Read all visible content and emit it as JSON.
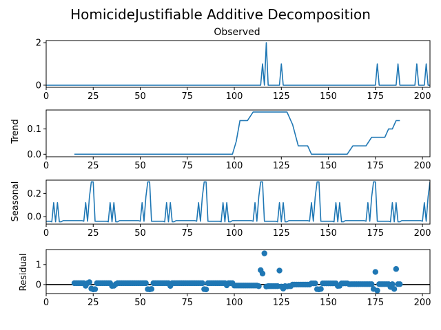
{
  "chart_data": {
    "type": "line",
    "title": "HomicideJustifiable Additive Decomposition",
    "xlim": [
      0,
      204
    ],
    "xticks": [
      0,
      25,
      50,
      75,
      100,
      125,
      150,
      175,
      200
    ],
    "panels": [
      {
        "key": "observed",
        "kind": "line",
        "title": "Observed",
        "ylabel": "",
        "ylim": [
          -0.1,
          2.1
        ],
        "yticks": [
          0,
          2
        ],
        "ytick_labels": [
          "0",
          "2"
        ],
        "x": [
          0,
          114,
          115,
          116,
          117,
          118,
          124,
          125,
          126,
          175,
          176,
          177,
          186,
          187,
          188,
          196,
          197,
          198,
          201,
          202,
          203,
          204
        ],
        "values": [
          0,
          0,
          1,
          0,
          2,
          0,
          0,
          1,
          0,
          0,
          1,
          0,
          0,
          1,
          0,
          0,
          1,
          0,
          0,
          1,
          0,
          0
        ]
      },
      {
        "key": "trend",
        "kind": "line",
        "title": "",
        "ylabel": "Trend",
        "ylim": [
          -0.01,
          0.175
        ],
        "yticks": [
          0,
          0.1
        ],
        "ytick_labels": [
          "0.0",
          "0.1"
        ],
        "x": [
          15,
          99,
          101,
          103,
          107,
          110,
          128,
          131,
          134,
          139,
          141,
          160,
          163,
          170,
          173,
          180,
          182,
          184,
          186,
          188
        ],
        "values": [
          0,
          0,
          0.05,
          0.133,
          0.133,
          0.167,
          0.167,
          0.117,
          0.033,
          0.033,
          0,
          0,
          0.033,
          0.033,
          0.067,
          0.067,
          0.1,
          0.1,
          0.133,
          0.133
        ]
      },
      {
        "key": "seasonal",
        "kind": "line",
        "title": "",
        "ylabel": "Seasonal",
        "ylim": [
          -0.065,
          0.315
        ],
        "yticks": [
          0,
          0.2
        ],
        "ytick_labels": [
          "0.0",
          "0.2"
        ],
        "period": 30,
        "pattern_x": [
          0,
          2,
          3,
          4,
          5,
          6,
          7,
          8,
          9,
          12,
          15,
          19,
          20,
          21,
          22,
          23,
          24,
          25,
          26,
          27,
          29,
          30
        ],
        "pattern_values": [
          -0.04,
          -0.04,
          -0.045,
          0.12,
          -0.045,
          0.12,
          -0.045,
          -0.045,
          -0.035,
          -0.035,
          -0.035,
          -0.035,
          -0.04,
          0.12,
          -0.04,
          0.17,
          0.3,
          0.3,
          -0.04,
          -0.04,
          -0.04,
          -0.04
        ],
        "x_start": 0,
        "x_end": 204
      },
      {
        "key": "residual",
        "kind": "scatter",
        "title": "",
        "ylabel": "Residual",
        "ylim": [
          -0.45,
          1.75
        ],
        "yticks": [
          0,
          1
        ],
        "ytick_labels": [
          "0",
          "1"
        ],
        "zero_line": true,
        "x_start": 15,
        "x_end": 188,
        "baseline_segments": [
          {
            "from": 15,
            "to": 99,
            "value": 0.07
          },
          {
            "from": 100,
            "to": 112,
            "value": -0.05
          },
          {
            "from": 113,
            "to": 130,
            "value": -0.08
          },
          {
            "from": 131,
            "to": 140,
            "value": 0.0
          },
          {
            "from": 141,
            "to": 160,
            "value": 0.06
          },
          {
            "from": 161,
            "to": 188,
            "value": 0.02
          }
        ],
        "overrides": [
          {
            "x": 21,
            "value": -0.06
          },
          {
            "x": 23,
            "value": 0.12
          },
          {
            "x": 24,
            "value": -0.2
          },
          {
            "x": 25,
            "value": -0.24
          },
          {
            "x": 26,
            "value": -0.23
          },
          {
            "x": 35,
            "value": -0.07
          },
          {
            "x": 36,
            "value": -0.06
          },
          {
            "x": 37,
            "value": 0.02
          },
          {
            "x": 54,
            "value": -0.23
          },
          {
            "x": 55,
            "value": -0.24
          },
          {
            "x": 56,
            "value": -0.22
          },
          {
            "x": 66,
            "value": -0.07
          },
          {
            "x": 84,
            "value": -0.23
          },
          {
            "x": 85,
            "value": -0.24
          },
          {
            "x": 96,
            "value": -0.04
          },
          {
            "x": 114,
            "value": 0.72
          },
          {
            "x": 115,
            "value": 0.55
          },
          {
            "x": 116,
            "value": 1.56
          },
          {
            "x": 117,
            "value": -0.1
          },
          {
            "x": 124,
            "value": 0.7
          },
          {
            "x": 125,
            "value": -0.1
          },
          {
            "x": 126,
            "value": -0.2
          },
          {
            "x": 128,
            "value": -0.1
          },
          {
            "x": 144,
            "value": -0.23
          },
          {
            "x": 145,
            "value": -0.24
          },
          {
            "x": 146,
            "value": -0.22
          },
          {
            "x": 155,
            "value": -0.07
          },
          {
            "x": 156,
            "value": -0.06
          },
          {
            "x": 174,
            "value": -0.22
          },
          {
            "x": 175,
            "value": 0.63
          },
          {
            "x": 176,
            "value": -0.3
          },
          {
            "x": 183,
            "value": -0.12
          },
          {
            "x": 185,
            "value": -0.22
          },
          {
            "x": 186,
            "value": 0.78
          }
        ]
      }
    ]
  }
}
